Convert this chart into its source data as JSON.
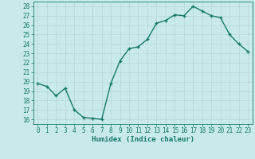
{
  "x": [
    0,
    1,
    2,
    3,
    4,
    5,
    6,
    7,
    8,
    9,
    10,
    11,
    12,
    13,
    14,
    15,
    16,
    17,
    18,
    19,
    20,
    21,
    22,
    23
  ],
  "y": [
    19.8,
    19.5,
    18.5,
    19.3,
    17.0,
    16.2,
    16.1,
    16.0,
    19.8,
    22.2,
    23.5,
    23.7,
    24.5,
    26.2,
    26.5,
    27.1,
    27.0,
    28.0,
    27.5,
    27.0,
    26.8,
    25.0,
    24.0,
    23.2
  ],
  "line_color": "#1a7a6a",
  "marker": "+",
  "marker_size": 3,
  "bg_color": "#c8eaea",
  "grid_color": "#b8d8d8",
  "xlabel": "Humidex (Indice chaleur)",
  "ylabel_ticks": [
    16,
    17,
    18,
    19,
    20,
    21,
    22,
    23,
    24,
    25,
    26,
    27,
    28
  ],
  "xlim": [
    -0.5,
    23.5
  ],
  "ylim": [
    15.5,
    28.5
  ],
  "xticks": [
    0,
    1,
    2,
    3,
    4,
    5,
    6,
    7,
    8,
    9,
    10,
    11,
    12,
    13,
    14,
    15,
    16,
    17,
    18,
    19,
    20,
    21,
    22,
    23
  ],
  "axis_color": "#1a7a6a",
  "tick_label_color": "#1a7a6a",
  "line_width": 1.0,
  "tick_fontsize": 5.5,
  "xlabel_fontsize": 6.5
}
